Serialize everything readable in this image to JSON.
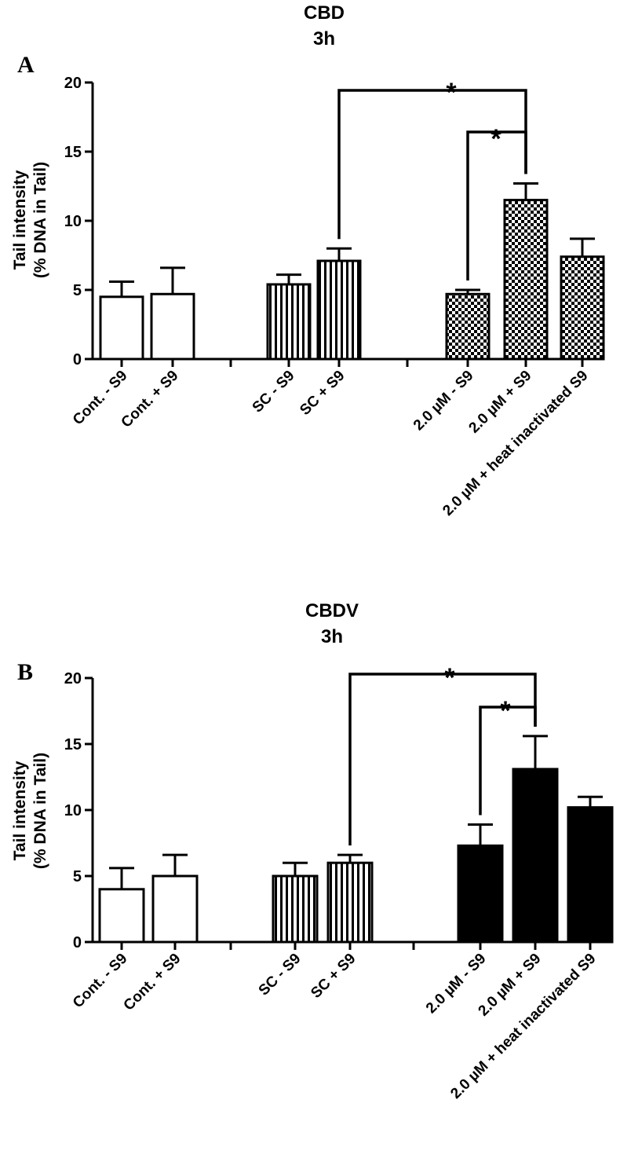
{
  "colors": {
    "ink": "#000000",
    "background": "#ffffff"
  },
  "chart_data": [
    {
      "type": "bar",
      "panel": "A",
      "title": "CBD",
      "subtitle": "3h",
      "ylabel_line1": "Tail intensity",
      "ylabel_line2": "(%  DNA in Tail)",
      "xlabel": "",
      "ylim": [
        0,
        20
      ],
      "yticks": [
        "0",
        "5",
        "10",
        "15",
        "20"
      ],
      "groups": [
        "control",
        "solvent-control",
        "treatment"
      ],
      "categories": [
        "Cont. - S9",
        "Cont. + S9",
        "SC - S9",
        "SC + S9",
        "2.0 µM - S9",
        "2.0 µM + S9",
        "2.0 µM + heat inactivated S9"
      ],
      "values": [
        4.5,
        4.7,
        5.4,
        7.1,
        4.7,
        11.5,
        7.4
      ],
      "errors": [
        1.1,
        1.9,
        0.7,
        0.9,
        0.3,
        1.2,
        1.3
      ],
      "fills": [
        "open",
        "open",
        "vertical-stripes",
        "vertical-stripes",
        "checkerboard",
        "checkerboard",
        "checkerboard"
      ],
      "significance": [
        {
          "from": "SC + S9",
          "to": "2.0 µM + S9",
          "label": "*"
        },
        {
          "from": "2.0 µM - S9",
          "to": "2.0 µM + S9",
          "label": "*"
        }
      ]
    },
    {
      "type": "bar",
      "panel": "B",
      "title": "CBDV",
      "subtitle": "3h",
      "ylabel_line1": "Tail intensity",
      "ylabel_line2": "(%  DNA in Tail)",
      "xlabel": "",
      "ylim": [
        0,
        20
      ],
      "yticks": [
        "0",
        "5",
        "10",
        "15",
        "20"
      ],
      "groups": [
        "control",
        "solvent-control",
        "treatment"
      ],
      "categories": [
        "Cont. - S9",
        "Cont. + S9",
        "SC - S9",
        "SC + S9",
        "2.0 µM - S9",
        "2.0 µM + S9",
        "2.0 µM + heat  inactivated S9"
      ],
      "values": [
        4.0,
        5.0,
        5.0,
        6.0,
        7.3,
        13.1,
        10.2
      ],
      "errors": [
        1.6,
        1.6,
        1.0,
        0.6,
        1.6,
        2.5,
        0.8
      ],
      "fills": [
        "open",
        "open",
        "vertical-stripes",
        "vertical-stripes",
        "solid",
        "solid",
        "solid"
      ],
      "significance": [
        {
          "from": "SC + S9",
          "to": "2.0 µM + S9",
          "label": "*"
        },
        {
          "from": "2.0 µM - S9",
          "to": "2.0 µM + S9",
          "label": "*"
        }
      ]
    }
  ]
}
